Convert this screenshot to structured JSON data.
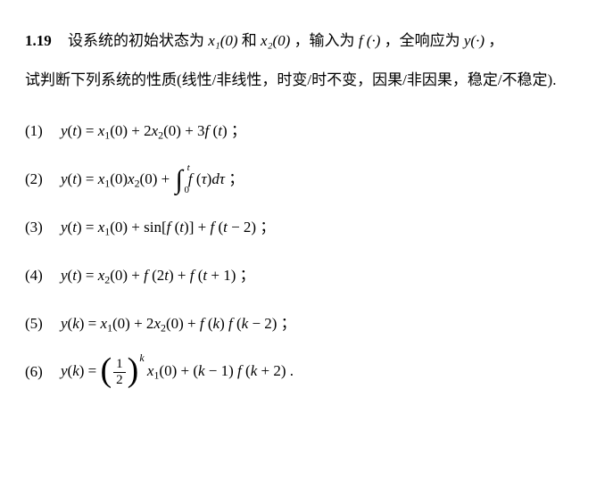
{
  "problem_number": "1.19",
  "intro_l1_a": "设系统的初始状态为",
  "state1": "x₁(0)",
  "intro_l1_b": "和",
  "state2": "x₂(0)",
  "intro_l1_c": "，输入为",
  "input_fn": "f (·)",
  "intro_l1_d": "，全响应为",
  "output_fn": "y(·)",
  "intro_l1_e": "，",
  "intro_l2": "试判断下列系统的性质(线性/非线性，时变/时不变，因果/非因果，稳定/不稳定).",
  "items": [
    {
      "num": "(1)",
      "expr_html": "<span class='math'>y</span>(<span class='math'>t</span>) = <span class='math'>x</span><sub>1</sub>(0) + 2<span class='math'>x</span><sub>2</sub>(0) + 3<span class='math'>f</span> (<span class='math'>t</span>) ；"
    },
    {
      "num": "(2)",
      "expr_html": "<span class='math'>y</span>(<span class='math'>t</span>) = <span class='math'>x</span><sub>1</sub>(0)<span class='math'>x</span><sub>2</sub>(0) + <span class='integral-wrap'><span class='int-sign'>∫<span class='int-up'>t</span><span class='int-lo'>0</span></span></span> <span class='math'>f</span> (<span class='math'>τ</span>)<span class='math'>dτ</span> ；"
    },
    {
      "num": "(3)",
      "expr_html": "<span class='math'>y</span>(<span class='math'>t</span>) = <span class='math'>x</span><sub>1</sub>(0) + <span class='rm'>sin</span>[<span class='math'>f</span> (<span class='math'>t</span>)] + <span class='math'>f</span> (<span class='math'>t</span> − 2) ；"
    },
    {
      "num": "(4)",
      "expr_html": "<span class='math'>y</span>(<span class='math'>t</span>) = <span class='math'>x</span><sub>2</sub>(0) + <span class='math'>f</span> (2<span class='math'>t</span>) + <span class='math'>f</span> (<span class='math'>t</span> + 1) ；"
    },
    {
      "num": "(5)",
      "expr_html": "<span class='math'>y</span>(<span class='math'>k</span>) = <span class='math'>x</span><sub>1</sub>(0) + 2<span class='math'>x</span><sub>2</sub>(0) + <span class='math'>f</span> (<span class='math'>k</span>) <span class='math'>f</span> (<span class='math'>k</span> − 2) ；"
    },
    {
      "num": "(6)",
      "expr_html": "<span class='math'>y</span>(<span class='math'>k</span>) = <span class='big-paren'><span class='paren'>(</span><span class='frac'><span class='num'>1</span><span class='den'>2</span></span><span class='paren'>)</span></span><span class='exp-k'>k</span> <span class='math'>x</span><sub>1</sub>(0) + (<span class='math'>k</span> − 1) <span class='math'>f</span> (<span class='math'>k</span> + 2) ."
    }
  ]
}
